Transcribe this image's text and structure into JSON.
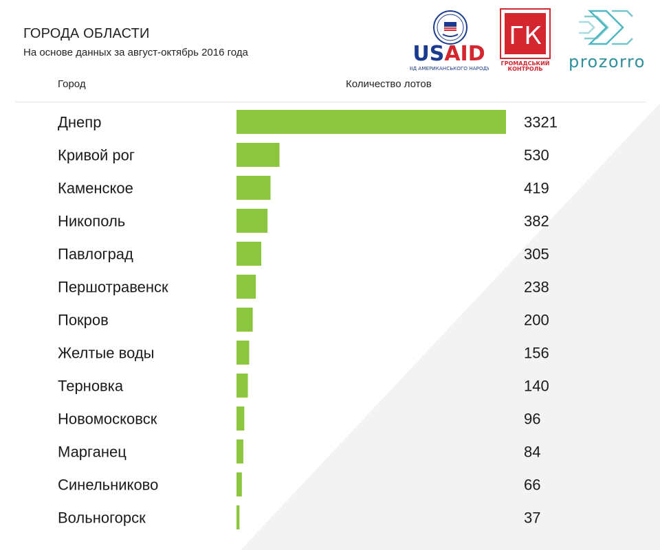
{
  "header": {
    "title": "ГОРОДА ОБЛАСТИ",
    "subtitle": "На основе данных за август-октябрь 2016 года",
    "col_city": "Город",
    "col_lots": "Количество лотов"
  },
  "logos": {
    "usaid": {
      "wordmark": "USAID",
      "tagline": "ВІД АМЕРИКАНСЬКОГО НАРОДУ"
    },
    "gk": {
      "mark": "ГК",
      "line1": "ГРОМАДСЬКИЙ",
      "line2": "КОНТРОЛЬ"
    },
    "prozorro": {
      "wordmark": "prozorro"
    }
  },
  "colors": {
    "bar": "#8cc63f",
    "gk_red": "#d3262e",
    "usaid_blue": "#1a3b8f",
    "prozorro_teal": "#4fb7c1"
  },
  "chart_data": {
    "type": "bar",
    "orientation": "horizontal",
    "categories": [
      "Днепр",
      "Кривой рог",
      "Каменское",
      "Никополь",
      "Павлоград",
      "Першотравенск",
      "Покров",
      "Желтые воды",
      "Терновка",
      "Новомосковск",
      "Марганец",
      "Синельниково",
      "Вольногорск"
    ],
    "values": [
      3321,
      530,
      419,
      382,
      305,
      238,
      200,
      156,
      140,
      96,
      84,
      66,
      37
    ],
    "value_labels": [
      "3321",
      "530",
      "419",
      "382",
      "305",
      "238",
      "200",
      "156",
      "140",
      "96",
      "84",
      "66",
      "37"
    ],
    "xlim": [
      0,
      3321
    ],
    "grid": false,
    "legend": "none"
  }
}
